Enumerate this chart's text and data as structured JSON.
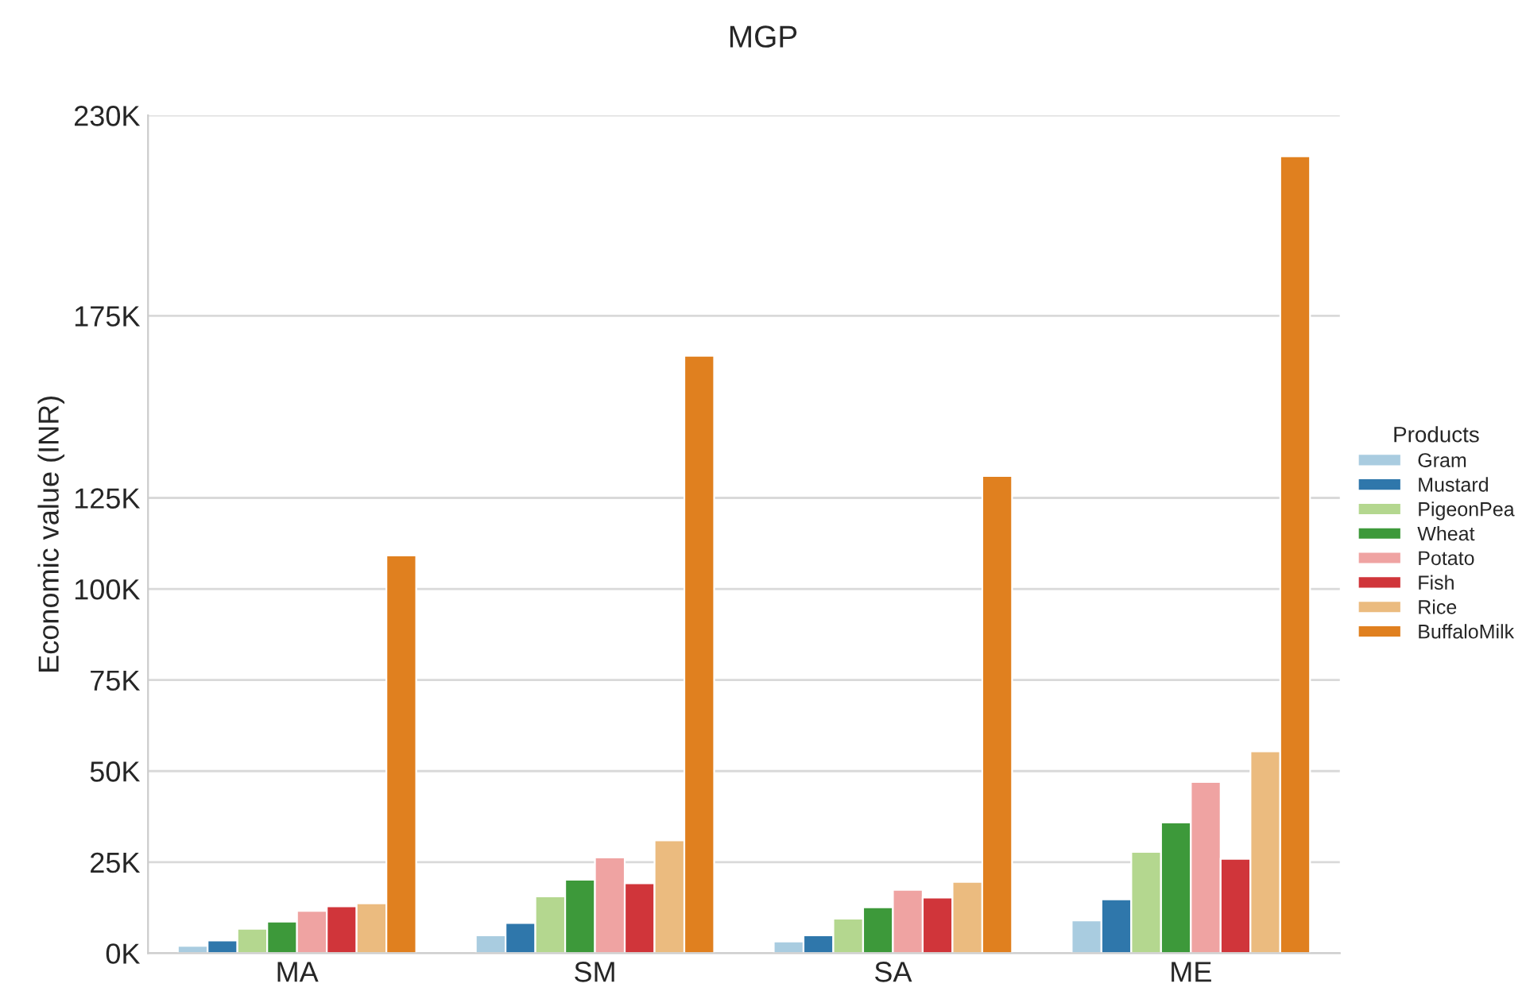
{
  "chart_data": {
    "type": "bar",
    "title": "MGP",
    "ylabel": "Economic value (INR)",
    "legend_title": "Products",
    "legend": "right",
    "grid": "y",
    "categories": [
      "MA",
      "SM",
      "SA",
      "ME"
    ],
    "ylim": [
      0,
      230000
    ],
    "yticks": [
      {
        "value": 0,
        "label": "0K"
      },
      {
        "value": 25000,
        "label": "25K"
      },
      {
        "value": 50000,
        "label": "50K"
      },
      {
        "value": 75000,
        "label": "75K"
      },
      {
        "value": 100000,
        "label": "100K"
      },
      {
        "value": 125000,
        "label": "125K"
      },
      {
        "value": 175000,
        "label": "175K"
      },
      {
        "value": 230000,
        "label": "230K"
      }
    ],
    "series": [
      {
        "name": "Gram",
        "color": "#a9cce0",
        "values": [
          2000,
          4900,
          3200,
          9000
        ]
      },
      {
        "name": "Mustard",
        "color": "#2f77ab",
        "values": [
          3500,
          8300,
          4900,
          14800
        ]
      },
      {
        "name": "PigeonPea",
        "color": "#b4d78f",
        "values": [
          6700,
          15600,
          9500,
          27800
        ]
      },
      {
        "name": "Wheat",
        "color": "#3d993a",
        "values": [
          8700,
          20200,
          12600,
          35900
        ]
      },
      {
        "name": "Potato",
        "color": "#efa3a2",
        "values": [
          11600,
          26300,
          17400,
          47000
        ]
      },
      {
        "name": "Fish",
        "color": "#d0353a",
        "values": [
          12900,
          19200,
          15300,
          25900
        ]
      },
      {
        "name": "Rice",
        "color": "#ebbb7f",
        "values": [
          13700,
          31000,
          19600,
          55400
        ]
      },
      {
        "name": "BuffaloMilk",
        "color": "#e0801f",
        "values": [
          109200,
          164000,
          131000,
          218800
        ]
      }
    ]
  }
}
